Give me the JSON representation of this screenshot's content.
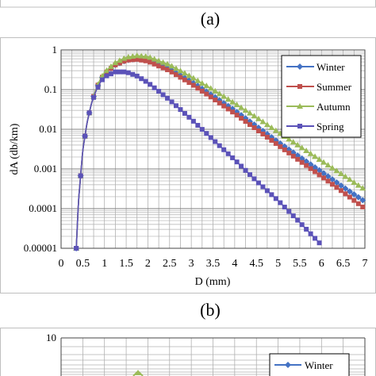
{
  "panel_a_label": "(a)",
  "panel_b_label": "(b)",
  "chart_data": [
    {
      "type": "line",
      "title": "",
      "xlabel": "D (mm)",
      "ylabel": "dA (db/km)",
      "yscale": "log",
      "xlim": [
        0,
        7
      ],
      "ylim": [
        1e-05,
        1
      ],
      "xticks": [
        0,
        0.5,
        1,
        1.5,
        2,
        2.5,
        3,
        3.5,
        4,
        4.5,
        5,
        5.5,
        6,
        6.5,
        7
      ],
      "xtick_labels": [
        "0",
        "0.5",
        "1",
        "1.5",
        "2",
        "2.5",
        "3",
        "3.5",
        "4",
        "4.5",
        "5",
        "5.5",
        "6",
        "6.5",
        "7"
      ],
      "yticks": [
        1e-05,
        0.0001,
        0.001,
        0.01,
        0.1,
        1
      ],
      "ytick_labels": [
        "0.00001",
        "0.0001",
        "0.001",
        "0.01",
        "0.1",
        "1"
      ],
      "grid": true,
      "legend_position": "top-right",
      "series": [
        {
          "name": "Winter",
          "color": "#4472c4",
          "marker": "diamond",
          "x": [
            0.35,
            0.4,
            0.5,
            0.6,
            0.7,
            0.8,
            0.9,
            1.0,
            1.25,
            1.5,
            1.75,
            2.0,
            2.5,
            3.0,
            3.5,
            4.0,
            4.5,
            5.0,
            5.5,
            6.0,
            6.5,
            7.0
          ],
          "y": [
            1e-05,
            0.00015,
            0.003,
            0.015,
            0.045,
            0.1,
            0.17,
            0.25,
            0.42,
            0.55,
            0.6,
            0.55,
            0.33,
            0.16,
            0.07,
            0.03,
            0.012,
            0.0048,
            0.002,
            0.00085,
            0.00035,
            0.00015
          ]
        },
        {
          "name": "Summer",
          "color": "#c0504d",
          "marker": "square",
          "x": [
            0.35,
            0.4,
            0.5,
            0.6,
            0.7,
            0.8,
            0.9,
            1.0,
            1.25,
            1.5,
            1.75,
            2.0,
            2.5,
            3.0,
            3.5,
            4.0,
            4.5,
            5.0,
            5.5,
            6.0,
            6.5,
            7.0
          ],
          "y": [
            1e-05,
            0.00015,
            0.003,
            0.015,
            0.045,
            0.1,
            0.17,
            0.25,
            0.42,
            0.55,
            0.58,
            0.52,
            0.3,
            0.14,
            0.06,
            0.025,
            0.01,
            0.004,
            0.0016,
            0.00065,
            0.00026,
            0.0001
          ]
        },
        {
          "name": "Autumn",
          "color": "#9bbb59",
          "marker": "triangle",
          "x": [
            0.35,
            0.4,
            0.5,
            0.6,
            0.7,
            0.8,
            0.9,
            1.0,
            1.25,
            1.5,
            1.75,
            2.0,
            2.5,
            3.0,
            3.5,
            4.0,
            4.5,
            5.0,
            5.5,
            6.0,
            6.5,
            7.0
          ],
          "y": [
            1e-05,
            0.00015,
            0.003,
            0.015,
            0.045,
            0.1,
            0.18,
            0.27,
            0.48,
            0.65,
            0.72,
            0.68,
            0.42,
            0.21,
            0.1,
            0.045,
            0.02,
            0.0085,
            0.0037,
            0.0016,
            0.0007,
            0.0003
          ]
        },
        {
          "name": "Spring",
          "color": "#5b52b8",
          "marker": "square",
          "x": [
            0.35,
            0.4,
            0.5,
            0.6,
            0.7,
            0.8,
            0.9,
            1.0,
            1.25,
            1.5,
            1.75,
            2.0,
            2.5,
            3.0,
            3.5,
            4.0,
            4.5,
            5.0,
            5.5,
            6.0
          ],
          "y": [
            1e-05,
            0.00015,
            0.003,
            0.015,
            0.045,
            0.09,
            0.15,
            0.21,
            0.28,
            0.28,
            0.22,
            0.15,
            0.055,
            0.018,
            0.0055,
            0.0017,
            0.0005,
            0.00016,
            4.5e-05,
            1.2e-05
          ]
        }
      ]
    },
    {
      "type": "line",
      "partial": true,
      "ytick_labels": [
        "10"
      ],
      "grid": true,
      "legend_position": "top-right",
      "series": [
        {
          "name": "Winter",
          "color": "#4472c4",
          "marker": "diamond"
        }
      ]
    }
  ]
}
